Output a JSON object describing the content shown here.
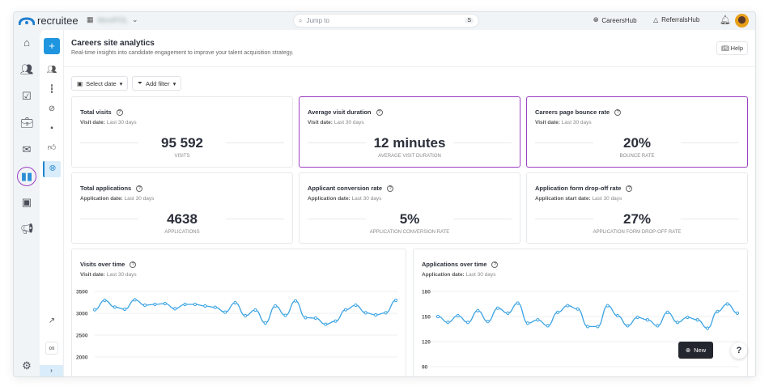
{
  "app": {
    "brand": "recruitee",
    "workspace": "MoniPOL",
    "search_placeholder": "Jump to",
    "search_shortcut": "S",
    "careers_hub": "CareersHub",
    "referrals_hub": "ReferralsHub"
  },
  "page": {
    "title": "Careers site analytics",
    "subtitle": "Real-time insights into candidate engagement to improve your talent acquisition strategy.",
    "help": "Help"
  },
  "filters": {
    "select_date": "Select date",
    "add_filter": "Add filter"
  },
  "kpis": [
    {
      "title": "Total visits",
      "date_label": "Visit date:",
      "date_value": "Last 30 days",
      "value": "95 592",
      "unit": "VISITS",
      "highlighted": false
    },
    {
      "title": "Average visit duration",
      "date_label": "Visit date:",
      "date_value": "Last 30 days",
      "value": "12 minutes",
      "unit": "AVERAGE VISIT DURATION",
      "highlighted": true
    },
    {
      "title": "Careers page bounce rate",
      "date_label": "Visit date:",
      "date_value": "Last 30 days",
      "value": "20%",
      "unit": "BOUNCE RATE",
      "highlighted": true
    },
    {
      "title": "Total applications",
      "date_label": "Application date:",
      "date_value": "Last 30 days",
      "value": "4638",
      "unit": "APPLICATIONS",
      "highlighted": false
    },
    {
      "title": "Applicant conversion rate",
      "date_label": "Application date:",
      "date_value": "Last 30 days",
      "value": "5%",
      "unit": "APPLICATION CONVERSION RATE",
      "highlighted": false
    },
    {
      "title": "Application form drop-off rate",
      "date_label": "Application start date:",
      "date_value": "Last 30 days",
      "value": "27%",
      "unit": "APPLICATION FORM DROP-OFF RATE",
      "highlighted": false
    }
  ],
  "chart_data": [
    {
      "type": "line",
      "title": "Visits over time",
      "date_label": "Visit date:",
      "date_value": "Last 30 days",
      "yticks": [
        3500,
        3000,
        2500,
        2000
      ],
      "ylim_visible": [
        2000,
        3500
      ],
      "grid": true,
      "color": "#3aa3e3",
      "values": [
        3080,
        3296,
        3142,
        3093,
        3309,
        3185,
        3204,
        3222,
        3105,
        3204,
        3204,
        3167,
        3136,
        3025,
        3241,
        2944,
        3074,
        2778,
        3167,
        2951,
        3284,
        2901,
        2889,
        2747,
        2821,
        3080,
        3185,
        3012,
        2963,
        3012,
        3296
      ]
    },
    {
      "type": "line",
      "title": "Applications over time",
      "date_label": "Application date:",
      "date_value": "Last 30 days",
      "yticks": [
        180,
        150,
        120,
        90
      ],
      "ylim_visible": [
        90,
        180
      ],
      "grid": true,
      "color": "#3aa3e3",
      "values": [
        150,
        143,
        151,
        143,
        157,
        144,
        160,
        154,
        166,
        142,
        146,
        139,
        155,
        163,
        159,
        138,
        138,
        163,
        151,
        139,
        149,
        146,
        139,
        155,
        143,
        149,
        146,
        136,
        156,
        165,
        154
      ]
    }
  ],
  "float": {
    "new": "New",
    "help": "?"
  },
  "colors": {
    "accent": "#1f95e0",
    "highlight": "#9b3fc4",
    "line": "#3aa3e3"
  }
}
